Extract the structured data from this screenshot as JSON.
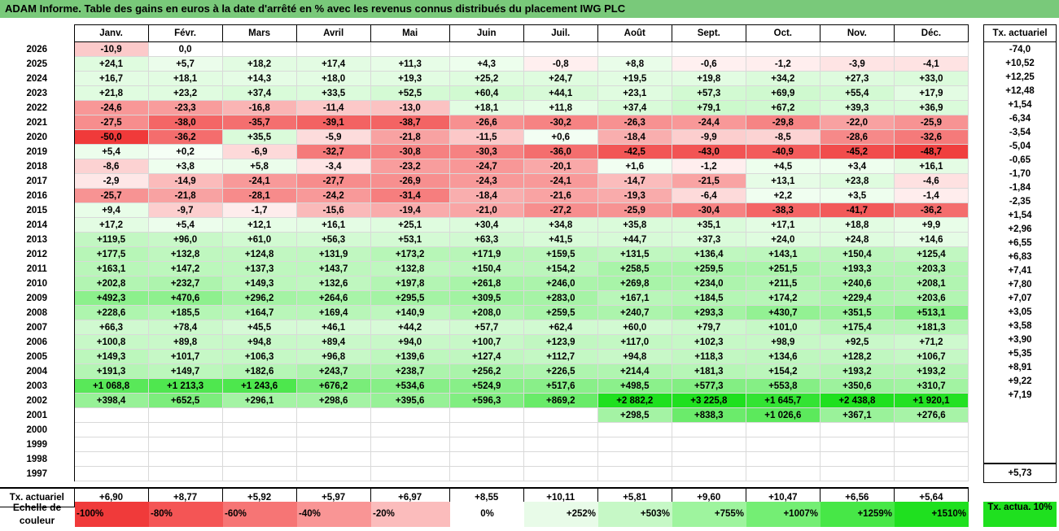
{
  "title": "ADAM Informe. Table des gains en euros à la date d'arrêté en % avec les revenus connus distribués du placement IWG PLC",
  "months": [
    "Janv.",
    "Févr.",
    "Mars",
    "Avril",
    "Mai",
    "Juin",
    "Juil.",
    "Août",
    "Sept.",
    "Oct.",
    "Nov.",
    "Déc."
  ],
  "tx_header": "Tx. actuariel",
  "footer_label": "Tx. actuariel",
  "scale_label": "Echelle de couleur",
  "scale_items": [
    "-100%",
    "-80%",
    "-60%",
    "-40%",
    "-20%",
    "0%",
    "+252%",
    "+503%",
    "+755%",
    "+1007%",
    "+1259%",
    "+1510%"
  ],
  "scale_colors": [
    "#f03a3a",
    "#f45555",
    "#f67575",
    "#f99595",
    "#fbbcbc",
    "#ffffff",
    "#e8fbe8",
    "#c6f8c6",
    "#9ef49e",
    "#74ee74",
    "#47e747",
    "#1fe01f"
  ],
  "scale_tx": "Tx. actua. 10%",
  "colors": {
    "title_bg": "#79c97a",
    "neg_full": "#f03a3a",
    "pos_full": "#1fe01f",
    "pos_max_reference": 1510
  },
  "chart_data": {
    "type": "table",
    "title": "ADAM Informe. Table des gains en euros à la date d'arrêté en % avec les revenus connus distribués du placement IWG PLC",
    "rows": [
      {
        "year": "2026",
        "values": [
          "-10,9",
          "0,0",
          "",
          "",
          "",
          "",
          "",
          "",
          "",
          "",
          "",
          ""
        ],
        "tx": "-74,0"
      },
      {
        "year": "2025",
        "values": [
          "+24,1",
          "+5,7",
          "+18,2",
          "+17,4",
          "+11,3",
          "+4,3",
          "-0,8",
          "+8,8",
          "-0,6",
          "-1,2",
          "-3,9",
          "-4,1"
        ],
        "tx": "+10,52"
      },
      {
        "year": "2024",
        "values": [
          "+16,7",
          "+18,1",
          "+14,3",
          "+18,0",
          "+19,3",
          "+25,2",
          "+24,7",
          "+19,5",
          "+19,8",
          "+34,2",
          "+27,3",
          "+33,0"
        ],
        "tx": "+12,25"
      },
      {
        "year": "2023",
        "values": [
          "+21,8",
          "+23,2",
          "+37,4",
          "+33,5",
          "+52,5",
          "+60,4",
          "+44,1",
          "+23,1",
          "+57,3",
          "+69,9",
          "+55,4",
          "+17,9"
        ],
        "tx": "+12,48"
      },
      {
        "year": "2022",
        "values": [
          "-24,6",
          "-23,3",
          "-16,8",
          "-11,4",
          "-13,0",
          "+18,1",
          "+11,8",
          "+37,4",
          "+79,1",
          "+67,2",
          "+39,3",
          "+36,9"
        ],
        "tx": "+1,54"
      },
      {
        "year": "2021",
        "values": [
          "-27,5",
          "-38,0",
          "-35,7",
          "-39,1",
          "-38,7",
          "-26,6",
          "-30,2",
          "-26,3",
          "-24,4",
          "-29,8",
          "-22,0",
          "-25,9"
        ],
        "tx": "-6,34"
      },
      {
        "year": "2020",
        "values": [
          "-50,0",
          "-36,2",
          "+35,5",
          "-5,9",
          "-21,8",
          "-11,5",
          "+0,6",
          "-18,4",
          "-9,9",
          "-8,5",
          "-28,6",
          "-32,6"
        ],
        "tx": "-3,54"
      },
      {
        "year": "2019",
        "values": [
          "+5,4",
          "+0,2",
          "-6,9",
          "-32,7",
          "-30,8",
          "-30,3",
          "-36,0",
          "-42,5",
          "-43,0",
          "-40,9",
          "-45,2",
          "-48,7"
        ],
        "tx": "-5,04"
      },
      {
        "year": "2018",
        "values": [
          "-8,6",
          "+3,8",
          "+5,8",
          "-3,4",
          "-23,2",
          "-24,7",
          "-20,1",
          "+1,6",
          "-1,2",
          "+4,5",
          "+3,4",
          "+16,1"
        ],
        "tx": "-0,65"
      },
      {
        "year": "2017",
        "values": [
          "-2,9",
          "-14,9",
          "-24,1",
          "-27,7",
          "-26,9",
          "-24,3",
          "-24,1",
          "-14,7",
          "-21,5",
          "+13,1",
          "+23,8",
          "-4,6"
        ],
        "tx": "-1,70"
      },
      {
        "year": "2016",
        "values": [
          "-25,7",
          "-21,8",
          "-28,1",
          "-24,2",
          "-31,4",
          "-18,4",
          "-21,6",
          "-19,3",
          "-6,4",
          "+2,2",
          "+3,5",
          "-1,4"
        ],
        "tx": "-1,84"
      },
      {
        "year": "2015",
        "values": [
          "+9,4",
          "-9,7",
          "-1,7",
          "-15,6",
          "-19,4",
          "-21,0",
          "-27,2",
          "-25,9",
          "-30,4",
          "-38,3",
          "-41,7",
          "-36,2"
        ],
        "tx": "-2,35"
      },
      {
        "year": "2014",
        "values": [
          "+17,2",
          "+5,4",
          "+12,1",
          "+16,1",
          "+25,1",
          "+30,4",
          "+34,8",
          "+35,8",
          "+35,1",
          "+17,1",
          "+18,8",
          "+9,9"
        ],
        "tx": "+1,54"
      },
      {
        "year": "2013",
        "values": [
          "+119,5",
          "+96,0",
          "+61,0",
          "+56,3",
          "+53,1",
          "+63,3",
          "+41,5",
          "+44,7",
          "+37,3",
          "+24,0",
          "+24,8",
          "+14,6"
        ],
        "tx": "+2,96"
      },
      {
        "year": "2012",
        "values": [
          "+177,5",
          "+132,8",
          "+124,8",
          "+131,9",
          "+173,2",
          "+171,9",
          "+159,5",
          "+131,5",
          "+136,4",
          "+143,1",
          "+150,4",
          "+125,4"
        ],
        "tx": "+6,55"
      },
      {
        "year": "2011",
        "values": [
          "+163,1",
          "+147,2",
          "+137,3",
          "+143,7",
          "+132,8",
          "+150,4",
          "+154,2",
          "+258,5",
          "+259,5",
          "+251,5",
          "+193,3",
          "+203,3"
        ],
        "tx": "+6,83"
      },
      {
        "year": "2010",
        "values": [
          "+202,8",
          "+232,7",
          "+149,3",
          "+132,6",
          "+197,8",
          "+261,8",
          "+246,0",
          "+269,8",
          "+234,0",
          "+211,5",
          "+240,6",
          "+208,1"
        ],
        "tx": "+7,41"
      },
      {
        "year": "2009",
        "values": [
          "+492,3",
          "+470,6",
          "+296,2",
          "+264,6",
          "+295,5",
          "+309,5",
          "+283,0",
          "+167,1",
          "+184,5",
          "+174,2",
          "+229,4",
          "+203,6"
        ],
        "tx": "+7,80"
      },
      {
        "year": "2008",
        "values": [
          "+228,6",
          "+185,5",
          "+164,7",
          "+169,4",
          "+140,9",
          "+208,0",
          "+259,5",
          "+240,7",
          "+293,3",
          "+430,7",
          "+351,5",
          "+513,1"
        ],
        "tx": "+7,07"
      },
      {
        "year": "2007",
        "values": [
          "+66,3",
          "+78,4",
          "+45,5",
          "+46,1",
          "+44,2",
          "+57,7",
          "+62,4",
          "+60,0",
          "+79,7",
          "+101,0",
          "+175,4",
          "+181,3"
        ],
        "tx": "+3,05"
      },
      {
        "year": "2006",
        "values": [
          "+100,8",
          "+89,8",
          "+94,8",
          "+89,4",
          "+94,0",
          "+100,7",
          "+123,9",
          "+117,0",
          "+102,3",
          "+98,9",
          "+92,5",
          "+71,2"
        ],
        "tx": "+3,58"
      },
      {
        "year": "2005",
        "values": [
          "+149,3",
          "+101,7",
          "+106,3",
          "+96,8",
          "+139,6",
          "+127,4",
          "+112,7",
          "+94,8",
          "+118,3",
          "+134,6",
          "+128,2",
          "+106,7"
        ],
        "tx": "+3,90"
      },
      {
        "year": "2004",
        "values": [
          "+191,3",
          "+149,7",
          "+182,6",
          "+243,7",
          "+238,7",
          "+256,2",
          "+226,5",
          "+214,4",
          "+181,3",
          "+154,2",
          "+193,2",
          "+193,2"
        ],
        "tx": "+5,35"
      },
      {
        "year": "2003",
        "values": [
          "+1 068,8",
          "+1 213,3",
          "+1 243,6",
          "+676,2",
          "+534,6",
          "+524,9",
          "+517,6",
          "+498,5",
          "+577,3",
          "+553,8",
          "+350,6",
          "+310,7"
        ],
        "tx": "+8,91"
      },
      {
        "year": "2002",
        "values": [
          "+398,4",
          "+652,5",
          "+296,1",
          "+298,6",
          "+395,6",
          "+596,3",
          "+869,2",
          "+2 882,2",
          "+3 225,8",
          "+1 645,7",
          "+2 438,8",
          "+1 920,1"
        ],
        "tx": "+9,22"
      },
      {
        "year": "2001",
        "values": [
          "",
          "",
          "",
          "",
          "",
          "",
          "",
          "+298,5",
          "+838,3",
          "+1 026,6",
          "+367,1",
          "+276,6"
        ],
        "tx": "+7,19"
      },
      {
        "year": "2000",
        "values": [
          "",
          "",
          "",
          "",
          "",
          "",
          "",
          "",
          "",
          "",
          "",
          ""
        ],
        "tx": ""
      },
      {
        "year": "1999",
        "values": [
          "",
          "",
          "",
          "",
          "",
          "",
          "",
          "",
          "",
          "",
          "",
          ""
        ],
        "tx": ""
      },
      {
        "year": "1998",
        "values": [
          "",
          "",
          "",
          "",
          "",
          "",
          "",
          "",
          "",
          "",
          "",
          ""
        ],
        "tx": ""
      },
      {
        "year": "1997",
        "values": [
          "",
          "",
          "",
          "",
          "",
          "",
          "",
          "",
          "",
          "",
          "",
          ""
        ],
        "tx": ""
      }
    ],
    "footer_values": [
      "+6,90",
      "+8,77",
      "+5,92",
      "+5,97",
      "+6,97",
      "+8,55",
      "+10,11",
      "+5,81",
      "+9,60",
      "+10,47",
      "+6,56",
      "+5,64"
    ],
    "footer_tx": "+5,73"
  }
}
